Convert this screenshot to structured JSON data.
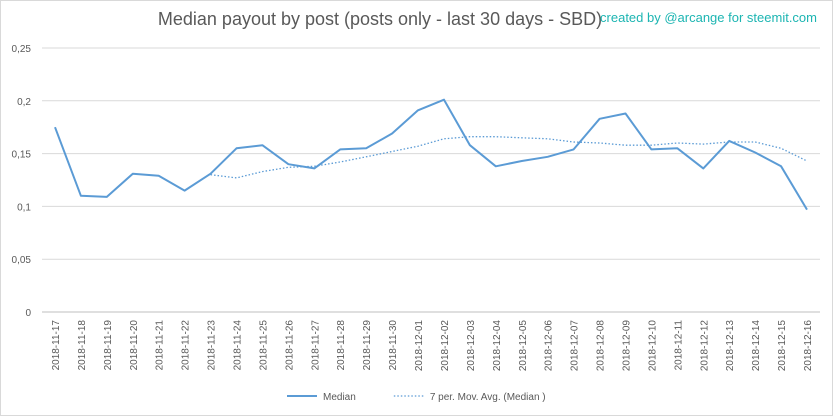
{
  "chart_data": {
    "type": "line",
    "title": "Median payout by post (posts only - last 30 days - SBD)",
    "credit": "created by @arcange for steemit.com",
    "ylim": [
      0,
      0.25
    ],
    "y_ticks": [
      "0",
      "0,05",
      "0,1",
      "0,15",
      "0,2",
      "0,25"
    ],
    "grid": true,
    "legend_position": "bottom",
    "categories": [
      "2018-11-17",
      "2018-11-18",
      "2018-11-19",
      "2018-11-20",
      "2018-11-21",
      "2018-11-22",
      "2018-11-23",
      "2018-11-24",
      "2018-11-25",
      "2018-11-26",
      "2018-11-27",
      "2018-11-28",
      "2018-11-29",
      "2018-11-30",
      "2018-12-01",
      "2018-12-02",
      "2018-12-03",
      "2018-12-04",
      "2018-12-05",
      "2018-12-06",
      "2018-12-07",
      "2018-12-08",
      "2018-12-09",
      "2018-12-10",
      "2018-12-11",
      "2018-12-12",
      "2018-12-13",
      "2018-12-14",
      "2018-12-15",
      "2018-12-16"
    ],
    "series": [
      {
        "name": "Median",
        "style": "solid",
        "color": "#5b9bd5",
        "values": [
          0.175,
          0.11,
          0.109,
          0.131,
          0.129,
          0.115,
          0.131,
          0.155,
          0.158,
          0.14,
          0.136,
          0.154,
          0.155,
          0.169,
          0.191,
          0.201,
          0.158,
          0.138,
          0.143,
          0.147,
          0.154,
          0.183,
          0.188,
          0.154,
          0.155,
          0.136,
          0.162,
          0.151,
          0.138,
          0.097
        ]
      },
      {
        "name": "7 per. Mov. Avg. (Median )",
        "style": "dotted",
        "color": "#5b9bd5",
        "values": [
          null,
          null,
          null,
          null,
          null,
          null,
          0.13,
          0.127,
          0.133,
          0.137,
          0.138,
          0.142,
          0.147,
          0.152,
          0.157,
          0.164,
          0.166,
          0.166,
          0.165,
          0.164,
          0.161,
          0.16,
          0.158,
          0.158,
          0.16,
          0.159,
          0.161,
          0.161,
          0.155,
          0.143
        ]
      }
    ]
  }
}
